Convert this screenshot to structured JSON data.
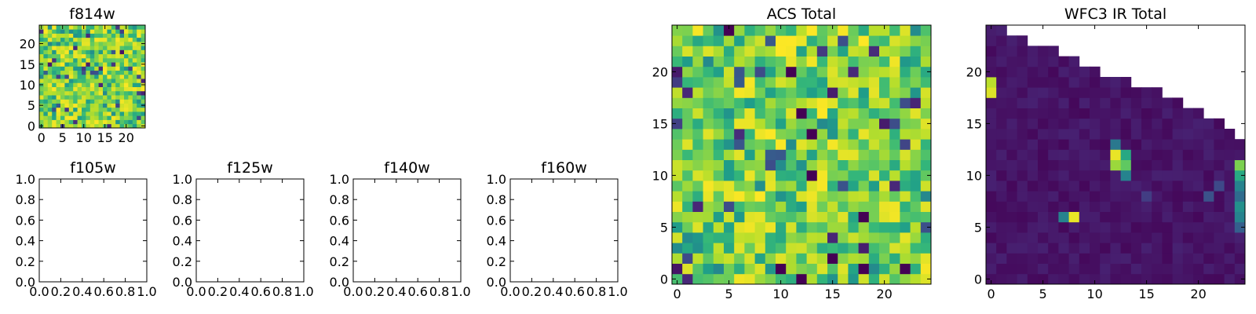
{
  "chart_data": [
    {
      "type": "heatmap",
      "title": "f814w",
      "grid_size": 25,
      "xlim": [
        -0.5,
        24.5
      ],
      "ylim": [
        -0.5,
        24.5
      ],
      "xticks": [
        0,
        5,
        10,
        15,
        20
      ],
      "yticks": [
        0,
        5,
        10,
        15,
        20
      ],
      "colormap": "viridis",
      "pattern": "noise-high",
      "seed": 17,
      "value_range": [
        0,
        1
      ],
      "grid": false
    },
    {
      "type": "empty",
      "title": "f105w",
      "xlim": [
        0,
        1
      ],
      "ylim": [
        0,
        1
      ],
      "xticks": [
        "0.0",
        "0.2",
        "0.4",
        "0.6",
        "0.8",
        "1.0"
      ],
      "yticks": [
        "0.0",
        "0.2",
        "0.4",
        "0.6",
        "0.8",
        "1.0"
      ]
    },
    {
      "type": "empty",
      "title": "f125w",
      "xlim": [
        0,
        1
      ],
      "ylim": [
        0,
        1
      ],
      "xticks": [
        "0.0",
        "0.2",
        "0.4",
        "0.6",
        "0.8",
        "1.0"
      ],
      "yticks": [
        "0.0",
        "0.2",
        "0.4",
        "0.6",
        "0.8",
        "1.0"
      ]
    },
    {
      "type": "empty",
      "title": "f140w",
      "xlim": [
        0,
        1
      ],
      "ylim": [
        0,
        1
      ],
      "xticks": [
        "0.0",
        "0.2",
        "0.4",
        "0.6",
        "0.8",
        "1.0"
      ],
      "yticks": [
        "0.0",
        "0.2",
        "0.4",
        "0.6",
        "0.8",
        "1.0"
      ]
    },
    {
      "type": "empty",
      "title": "f160w",
      "xlim": [
        0,
        1
      ],
      "ylim": [
        0,
        1
      ],
      "xticks": [
        "0.0",
        "0.2",
        "0.4",
        "0.6",
        "0.8",
        "1.0"
      ],
      "yticks": [
        "0.0",
        "0.2",
        "0.4",
        "0.6",
        "0.8",
        "1.0"
      ]
    },
    {
      "type": "heatmap",
      "title": "ACS Total",
      "grid_size": 25,
      "xlim": [
        -0.5,
        24.5
      ],
      "ylim": [
        -0.5,
        24.5
      ],
      "xticks": [
        0,
        5,
        10,
        15,
        20
      ],
      "yticks": [
        0,
        5,
        10,
        15,
        20
      ],
      "colormap": "viridis",
      "pattern": "noise-high",
      "seed": 91,
      "value_range": [
        0,
        1
      ],
      "dark_cells": [
        [
          12,
          16
        ],
        [
          13,
          14
        ],
        [
          13,
          10
        ],
        [
          18,
          6
        ],
        [
          10,
          1
        ],
        [
          18,
          1
        ],
        [
          12,
          0
        ],
        [
          5,
          24
        ],
        [
          11,
          20
        ],
        [
          22,
          1
        ],
        [
          15,
          2
        ]
      ],
      "grid": false
    },
    {
      "type": "heatmap",
      "title": "WFC3 IR Total",
      "grid_size": 25,
      "xlim": [
        -0.5,
        24.5
      ],
      "ylim": [
        -0.5,
        24.5
      ],
      "xticks": [
        0,
        5,
        10,
        15,
        20
      ],
      "yticks": [
        0,
        5,
        10,
        15,
        20
      ],
      "colormap": "viridis",
      "pattern": "low-with-hotspots",
      "seed": 7,
      "value_range": [
        0,
        1
      ],
      "masked_top_row_per_column": [
        25,
        24,
        23,
        23,
        22,
        22,
        22,
        21,
        21,
        20,
        20,
        19,
        19,
        19,
        18,
        18,
        18,
        17,
        17,
        16,
        16,
        15,
        15,
        14,
        13
      ],
      "hotspots": [
        [
          0,
          18,
          0.95
        ],
        [
          0,
          19,
          0.9
        ],
        [
          12,
          12,
          0.97
        ],
        [
          13,
          12,
          0.6
        ],
        [
          12,
          11,
          0.85
        ],
        [
          13,
          11,
          0.75
        ],
        [
          12,
          13,
          0.4
        ],
        [
          13,
          10,
          0.45
        ],
        [
          8,
          6,
          0.97
        ],
        [
          7,
          6,
          0.45
        ],
        [
          24,
          11,
          0.8
        ],
        [
          24,
          10,
          0.6
        ],
        [
          24,
          9,
          0.45
        ],
        [
          24,
          8,
          0.35
        ],
        [
          24,
          7,
          0.5
        ],
        [
          24,
          6,
          0.45
        ],
        [
          24,
          5,
          0.3
        ],
        [
          21,
          8,
          0.25
        ],
        [
          22,
          9,
          0.22
        ],
        [
          15,
          8,
          0.18
        ]
      ],
      "grid": false
    }
  ]
}
